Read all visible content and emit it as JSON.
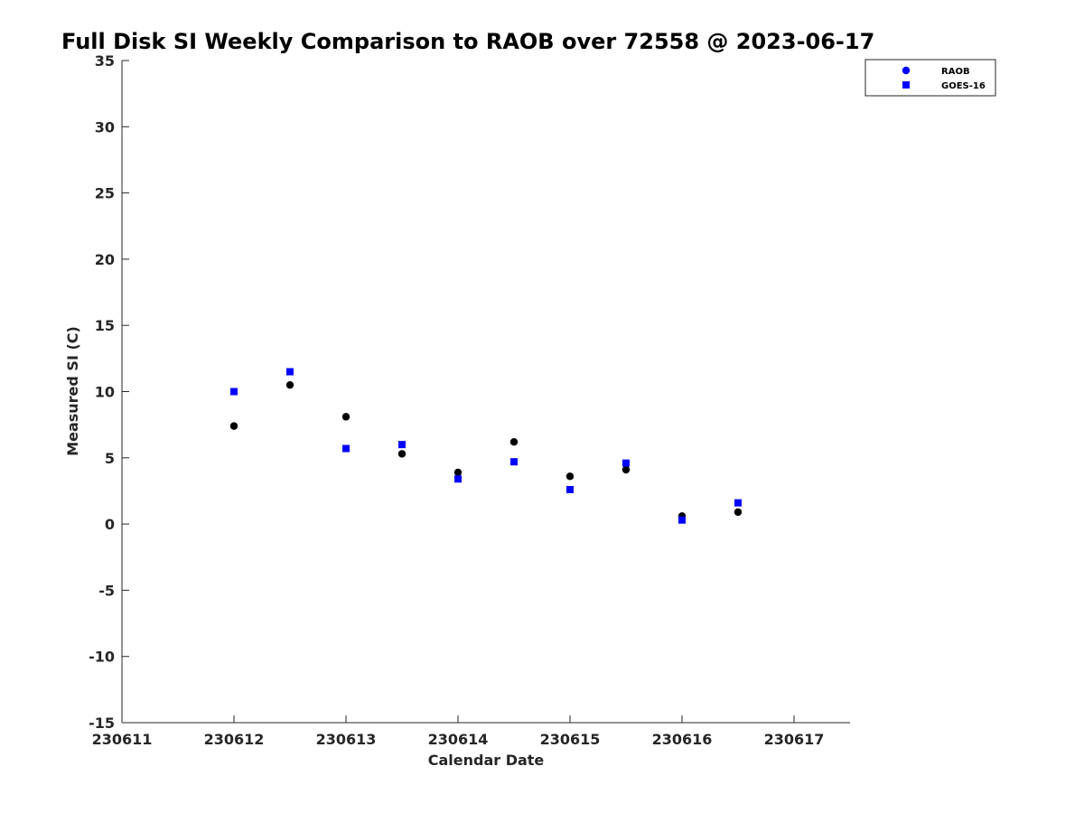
{
  "chart_data": {
    "type": "scatter",
    "title": "Full Disk SI Weekly Comparison to RAOB over 72558 @ 2023-06-17",
    "xlabel": "Calendar Date",
    "ylabel": "Measured SI (C)",
    "x_ticks": [
      "230611",
      "230612",
      "230613",
      "230614",
      "230615",
      "230616",
      "230617"
    ],
    "xlim": [
      "230611",
      "230617 12Z"
    ],
    "ylim": [
      -15,
      35
    ],
    "y_ticks": [
      -15,
      -10,
      -5,
      0,
      5,
      10,
      15,
      20,
      25,
      30,
      35
    ],
    "grid": false,
    "legend_position": "top-right",
    "series": [
      {
        "name": "RAOB",
        "marker": "circle",
        "color": "#000000",
        "legend_color": "#0000ff",
        "x": [
          "230612 00Z",
          "230612 12Z",
          "230613 00Z",
          "230613 12Z",
          "230614 00Z",
          "230614 12Z",
          "230615 00Z",
          "230615 12Z",
          "230616 00Z",
          "230616 12Z"
        ],
        "y": [
          7.4,
          10.5,
          8.1,
          5.3,
          3.9,
          6.2,
          3.6,
          4.1,
          0.6,
          0.9
        ]
      },
      {
        "name": "GOES-16",
        "marker": "square",
        "color": "#0000ff",
        "x": [
          "230612 00Z",
          "230612 12Z",
          "230613 00Z",
          "230613 12Z",
          "230614 00Z",
          "230614 12Z",
          "230615 00Z",
          "230615 12Z",
          "230616 00Z",
          "230616 12Z"
        ],
        "y": [
          10.0,
          11.5,
          5.7,
          6.0,
          3.4,
          4.7,
          2.6,
          4.6,
          0.3,
          1.6
        ]
      }
    ]
  }
}
